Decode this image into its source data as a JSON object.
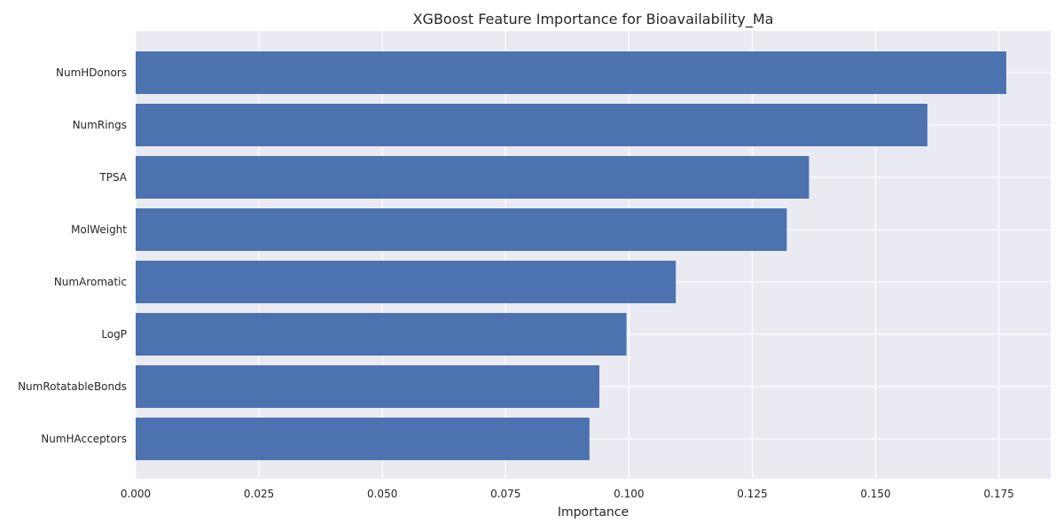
{
  "chart_data": {
    "type": "bar",
    "orientation": "horizontal",
    "title": "XGBoost Feature Importance for Bioavailability_Ma",
    "xlabel": "Importance",
    "ylabel": "",
    "categories": [
      "NumHDonors",
      "NumRings",
      "TPSA",
      "MolWeight",
      "NumAromatic",
      "LogP",
      "NumRotatableBonds",
      "NumHAcceptors"
    ],
    "values": [
      0.1765,
      0.1605,
      0.1365,
      0.132,
      0.1095,
      0.0995,
      0.094,
      0.092
    ],
    "xlim": [
      0.0,
      0.1855
    ],
    "xticks": [
      "0.000",
      "0.025",
      "0.050",
      "0.075",
      "0.100",
      "0.125",
      "0.150",
      "0.175"
    ],
    "grid": true,
    "colors": {
      "bar": "#4c72b0",
      "plot_background": "#eaeaf2",
      "grid": "#ffffff"
    }
  }
}
